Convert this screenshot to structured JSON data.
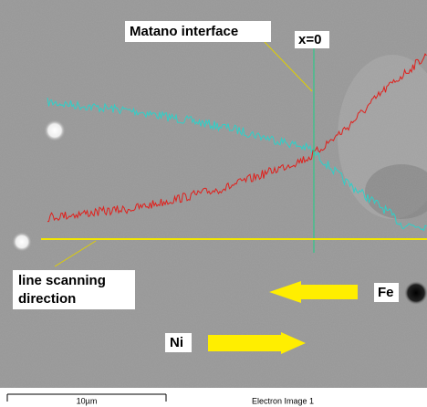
{
  "annotations": {
    "matano": "Matano interface",
    "origin": "x=0",
    "scan_line1": "line scanning",
    "scan_line2": "direction",
    "fe": "Fe",
    "ni": "Ni"
  },
  "footer": {
    "scale": "10µm",
    "caption": "Electron Image 1"
  }
}
